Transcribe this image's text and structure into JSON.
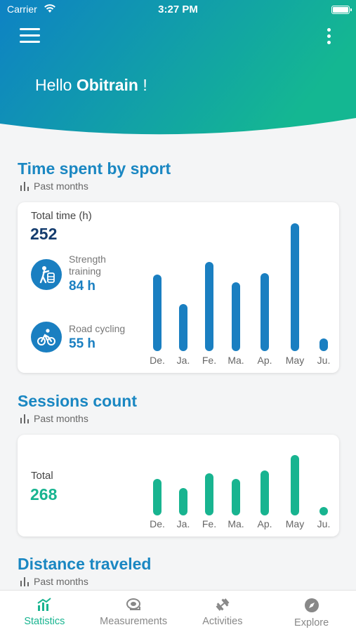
{
  "status_bar": {
    "carrier": "Carrier",
    "time": "3:27 PM"
  },
  "header": {
    "greeting_prefix": "Hello ",
    "user_name": "Obitrain",
    "greeting_suffix": " !"
  },
  "time_section": {
    "title": "Time spent by sport",
    "subtitle": "Past months",
    "total_label": "Total time (h)",
    "total_value": "252",
    "sports": [
      {
        "name_line1": "Strength",
        "name_line2": "training",
        "value": "84 h",
        "icon": "strength-training-icon"
      },
      {
        "name_line1": "Road cycling",
        "name_line2": "",
        "value": "55 h",
        "icon": "road-cycling-icon"
      }
    ]
  },
  "sessions_section": {
    "title": "Sessions count",
    "subtitle": "Past months",
    "total_label": "Total",
    "total_value": "268"
  },
  "distance_section": {
    "title": "Distance traveled",
    "subtitle": "Past months"
  },
  "tabs": [
    {
      "label": "Statistics",
      "icon": "statistics-icon",
      "active": true
    },
    {
      "label": "Measurements",
      "icon": "measuring-tape-icon",
      "active": false
    },
    {
      "label": "Activities",
      "icon": "dumbbell-icon",
      "active": false
    },
    {
      "label": "Explore",
      "icon": "compass-icon",
      "active": false
    }
  ],
  "colors": {
    "accent_blue": "#1a7fc1",
    "accent_green": "#18b490",
    "header_start": "#0e82c4",
    "header_end": "#14b792"
  },
  "chart_data": [
    {
      "type": "bar",
      "categories": [
        "De.",
        "Ja.",
        "Fe.",
        "Ma.",
        "Ap.",
        "May",
        "Ju."
      ],
      "values": [
        60,
        37,
        70,
        54,
        61,
        100,
        10
      ],
      "ylim": [
        0,
        100
      ],
      "color": "#1a7fc1"
    },
    {
      "type": "bar",
      "categories": [
        "De.",
        "Ja.",
        "Fe.",
        "Ma.",
        "Ap.",
        "May",
        "Ju."
      ],
      "values": [
        61,
        45,
        70,
        60,
        74,
        100,
        11
      ],
      "ylim": [
        0,
        100
      ],
      "color": "#18b490"
    }
  ]
}
